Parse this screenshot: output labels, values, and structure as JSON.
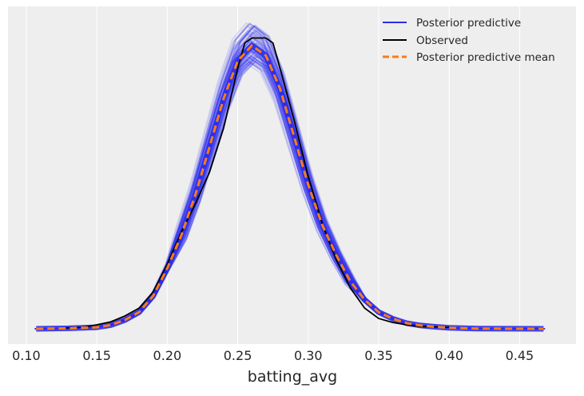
{
  "chart_data": {
    "type": "line",
    "title": "",
    "xlabel": "batting_avg",
    "ylabel": "",
    "xlim": [
      0.087,
      0.49
    ],
    "ylim": [
      -0.6,
      12.75
    ],
    "grid": "vertical",
    "xticks": [
      0.1,
      0.15,
      0.2,
      0.25,
      0.3,
      0.35,
      0.4,
      0.45
    ],
    "xtick_labels": [
      "0.10",
      "0.15",
      "0.20",
      "0.25",
      "0.30",
      "0.35",
      "0.40",
      "0.45"
    ],
    "legend": {
      "placement": "top-right",
      "entries": [
        {
          "label": "Posterior predictive",
          "color": "#2a2eec",
          "style": "solid"
        },
        {
          "label": "Observed",
          "color": "#000000",
          "style": "solid"
        },
        {
          "label": "Posterior predictive mean",
          "color": "#fa7c17",
          "style": "dashed"
        }
      ]
    },
    "series": [
      {
        "name": "Posterior predictive mean",
        "color": "#fa7c17",
        "x": [
          0.107,
          0.13,
          0.15,
          0.16,
          0.17,
          0.18,
          0.19,
          0.2,
          0.21,
          0.22,
          0.23,
          0.24,
          0.25,
          0.26,
          0.27,
          0.28,
          0.29,
          0.3,
          0.31,
          0.32,
          0.33,
          0.34,
          0.35,
          0.36,
          0.37,
          0.38,
          0.39,
          0.4,
          0.42,
          0.467
        ],
        "y": [
          0,
          0.02,
          0.06,
          0.15,
          0.35,
          0.66,
          1.3,
          2.4,
          3.7,
          5.3,
          7.2,
          9.1,
          10.6,
          11.2,
          10.8,
          9.5,
          7.6,
          5.7,
          4.1,
          2.9,
          1.87,
          1.15,
          0.66,
          0.4,
          0.22,
          0.13,
          0.08,
          0.04,
          0.01,
          0
        ]
      },
      {
        "name": "Observed",
        "color": "#000000",
        "x": [
          0.123,
          0.14,
          0.15,
          0.16,
          0.17,
          0.18,
          0.19,
          0.2,
          0.21,
          0.22,
          0.23,
          0.24,
          0.25,
          0.255,
          0.26,
          0.27,
          0.275,
          0.28,
          0.29,
          0.3,
          0.31,
          0.32,
          0.33,
          0.34,
          0.35,
          0.36,
          0.37,
          0.38,
          0.4
        ],
        "y": [
          0.03,
          0.06,
          0.16,
          0.28,
          0.51,
          0.82,
          1.46,
          2.56,
          3.83,
          4.94,
          6.2,
          7.94,
          10.3,
          11.3,
          11.5,
          11.5,
          11.3,
          10.3,
          8.26,
          6.04,
          4.15,
          2.72,
          1.61,
          0.82,
          0.41,
          0.25,
          0.16,
          0.09,
          0.06
        ]
      }
    ],
    "posterior_predictive": {
      "name": "Posterior predictive",
      "color": "#2a2eec",
      "peak_range": [
        10.5,
        12.1
      ]
    }
  }
}
